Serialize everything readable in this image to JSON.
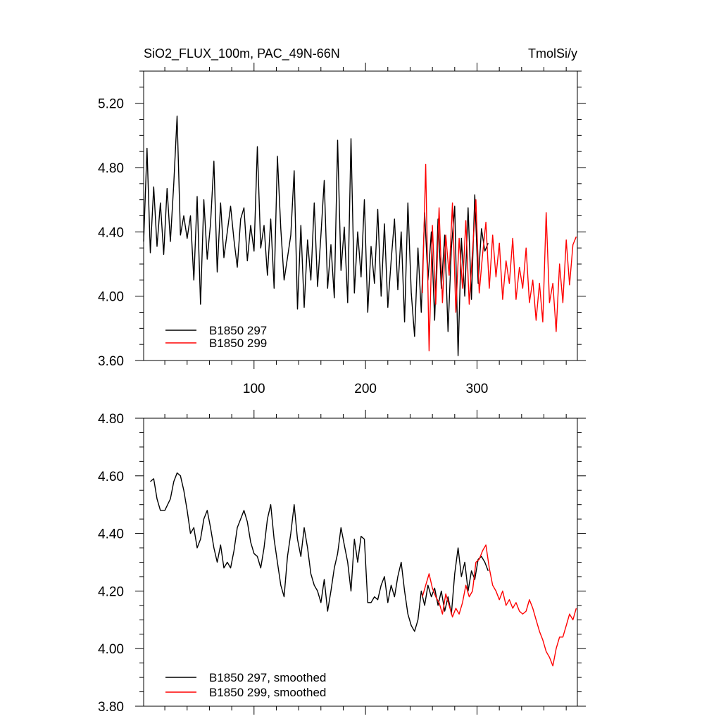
{
  "figure": {
    "title_left": "SiO2_FLUX_100m, PAC_49N-66N",
    "title_right": "TmolSi/y"
  },
  "chart_data": [
    {
      "type": "line",
      "title": "SiO2_FLUX_100m, PAC_49N-66N",
      "unit": "TmolSi/y",
      "xlim": [
        1,
        390
      ],
      "ylim": [
        3.6,
        5.4
      ],
      "x_ticks": [
        100,
        200,
        300
      ],
      "x_tick_labels": [
        "100",
        "200",
        "300"
      ],
      "y_ticks": [
        3.6,
        4.0,
        4.4,
        4.8,
        5.2
      ],
      "y_tick_labels": [
        "3.60",
        "4.00",
        "4.40",
        "4.80",
        "5.20"
      ],
      "legend_position": "bottom-left",
      "series": [
        {
          "name": "B1850 297",
          "color": "#000000",
          "x": [
            1,
            4,
            7,
            10,
            13,
            16,
            19,
            22,
            25,
            28,
            31,
            34,
            37,
            40,
            43,
            46,
            49,
            52,
            55,
            58,
            61,
            64,
            67,
            70,
            73,
            76,
            79,
            82,
            85,
            88,
            91,
            94,
            97,
            100,
            103,
            106,
            109,
            112,
            115,
            118,
            121,
            124,
            127,
            130,
            133,
            136,
            139,
            142,
            145,
            148,
            151,
            154,
            157,
            160,
            163,
            166,
            169,
            172,
            175,
            178,
            181,
            184,
            187,
            190,
            193,
            196,
            199,
            202,
            205,
            208,
            211,
            214,
            217,
            220,
            223,
            226,
            229,
            232,
            235,
            238,
            241,
            244,
            247,
            250,
            253,
            256,
            259,
            262,
            265,
            268,
            271,
            274,
            277,
            280,
            283,
            286,
            289,
            292,
            295,
            298,
            301,
            304,
            307,
            310
          ],
          "values": [
            4.34,
            4.92,
            4.27,
            4.68,
            4.31,
            4.58,
            4.26,
            4.67,
            4.34,
            4.7,
            5.12,
            4.38,
            4.5,
            4.36,
            4.5,
            4.1,
            4.62,
            3.95,
            4.6,
            4.23,
            4.45,
            4.84,
            4.15,
            4.58,
            4.24,
            4.4,
            4.56,
            4.35,
            4.18,
            4.48,
            4.55,
            4.22,
            4.44,
            4.28,
            4.93,
            4.3,
            4.44,
            4.13,
            4.48,
            4.05,
            4.87,
            4.42,
            4.1,
            4.24,
            4.38,
            4.78,
            3.92,
            4.44,
            3.93,
            4.35,
            4.1,
            4.58,
            4.06,
            4.38,
            4.72,
            4.05,
            4.32,
            3.99,
            4.97,
            4.16,
            4.43,
            3.96,
            4.98,
            4.02,
            4.4,
            4.12,
            4.6,
            3.9,
            4.31,
            4.08,
            4.54,
            4.0,
            4.45,
            3.93,
            4.22,
            4.48,
            4.04,
            4.4,
            3.84,
            4.58,
            4.02,
            3.75,
            4.3,
            3.9,
            4.52,
            4.1,
            4.4,
            3.85,
            4.48,
            4.05,
            4.38,
            3.78,
            4.3,
            4.56,
            3.63,
            4.36,
            4.0,
            4.55,
            3.98,
            4.63,
            4.08,
            4.42,
            4.28,
            4.33
          ]
        },
        {
          "name": "B1850 299",
          "color": "#ff0000",
          "x": [
            251,
            254,
            257,
            260,
            263,
            266,
            269,
            272,
            275,
            278,
            281,
            284,
            287,
            290,
            293,
            296,
            299,
            302,
            305,
            308,
            311,
            314,
            317,
            320,
            323,
            326,
            329,
            332,
            335,
            338,
            341,
            344,
            347,
            350,
            353,
            356,
            359,
            362,
            365,
            368,
            371,
            374,
            377,
            380,
            383,
            386,
            389
          ],
          "values": [
            4.02,
            4.82,
            3.66,
            4.44,
            3.95,
            4.55,
            3.96,
            4.38,
            4.13,
            4.58,
            3.9,
            4.36,
            4.05,
            4.47,
            3.95,
            4.28,
            4.6,
            4.02,
            4.26,
            4.46,
            4.05,
            4.38,
            4.12,
            4.33,
            3.98,
            4.22,
            4.08,
            4.36,
            3.98,
            4.18,
            4.05,
            4.3,
            3.96,
            4.1,
            3.85,
            4.08,
            3.84,
            4.52,
            3.96,
            4.08,
            3.78,
            4.2,
            3.96,
            4.35,
            4.07,
            4.32,
            4.37
          ]
        }
      ]
    },
    {
      "type": "line",
      "xlim": [
        1,
        390
      ],
      "ylim": [
        3.8,
        4.8
      ],
      "y_ticks": [
        3.8,
        4.0,
        4.2,
        4.4,
        4.6,
        4.8
      ],
      "y_tick_labels": [
        "3.80",
        "4.00",
        "4.20",
        "4.40",
        "4.60",
        "4.80"
      ],
      "x_ticks": [
        100,
        200,
        300
      ],
      "legend_position": "bottom-left",
      "series": [
        {
          "name": "B1850 297, smoothed",
          "color": "#000000",
          "x": [
            7,
            10,
            13,
            16,
            20,
            25,
            28,
            31,
            34,
            37,
            40,
            43,
            46,
            49,
            52,
            55,
            58,
            61,
            64,
            67,
            70,
            73,
            76,
            79,
            82,
            85,
            88,
            91,
            94,
            97,
            100,
            103,
            106,
            109,
            112,
            115,
            118,
            121,
            124,
            127,
            130,
            133,
            136,
            139,
            142,
            145,
            148,
            151,
            154,
            157,
            160,
            163,
            166,
            169,
            172,
            175,
            178,
            181,
            184,
            187,
            190,
            193,
            196,
            199,
            202,
            205,
            208,
            211,
            214,
            217,
            220,
            223,
            226,
            229,
            232,
            235,
            238,
            241,
            244,
            247,
            250,
            253,
            256,
            259,
            262,
            265,
            268,
            271,
            274,
            277,
            280,
            283,
            286,
            289,
            292,
            295,
            298,
            301,
            304,
            307,
            310
          ],
          "values": [
            4.58,
            4.59,
            4.52,
            4.48,
            4.48,
            4.52,
            4.58,
            4.61,
            4.6,
            4.55,
            4.48,
            4.4,
            4.42,
            4.35,
            4.38,
            4.45,
            4.48,
            4.42,
            4.35,
            4.3,
            4.36,
            4.28,
            4.3,
            4.28,
            4.34,
            4.42,
            4.45,
            4.48,
            4.44,
            4.37,
            4.33,
            4.32,
            4.28,
            4.35,
            4.45,
            4.5,
            4.38,
            4.3,
            4.22,
            4.18,
            4.32,
            4.4,
            4.5,
            4.38,
            4.32,
            4.42,
            4.35,
            4.26,
            4.22,
            4.2,
            4.16,
            4.24,
            4.13,
            4.2,
            4.28,
            4.33,
            4.42,
            4.36,
            4.3,
            4.2,
            4.38,
            4.3,
            4.39,
            4.38,
            4.16,
            4.16,
            4.18,
            4.17,
            4.22,
            4.25,
            4.16,
            4.22,
            4.18,
            4.25,
            4.3,
            4.2,
            4.12,
            4.08,
            4.06,
            4.1,
            4.2,
            4.15,
            4.22,
            4.18,
            4.21,
            4.15,
            4.2,
            4.13,
            4.18,
            4.12,
            4.26,
            4.35,
            4.25,
            4.3,
            4.2,
            4.27,
            4.24,
            4.31,
            4.32,
            4.3,
            4.27
          ]
        },
        {
          "name": "B1850 299, smoothed",
          "color": "#ff0000",
          "x": [
            251,
            254,
            257,
            260,
            263,
            266,
            269,
            272,
            275,
            278,
            281,
            284,
            287,
            290,
            293,
            296,
            299,
            302,
            305,
            308,
            311,
            314,
            317,
            320,
            323,
            326,
            329,
            332,
            335,
            338,
            341,
            344,
            347,
            350,
            353,
            356,
            359,
            362,
            365,
            368,
            371,
            374,
            377,
            380,
            383,
            386,
            389
          ],
          "values": [
            4.18,
            4.22,
            4.26,
            4.21,
            4.18,
            4.16,
            4.12,
            4.19,
            4.15,
            4.11,
            4.14,
            4.12,
            4.16,
            4.22,
            4.18,
            4.2,
            4.3,
            4.31,
            4.34,
            4.36,
            4.28,
            4.22,
            4.2,
            4.17,
            4.2,
            4.15,
            4.17,
            4.14,
            4.16,
            4.13,
            4.12,
            4.13,
            4.17,
            4.14,
            4.1,
            4.06,
            4.03,
            3.99,
            3.97,
            3.94,
            4.0,
            4.04,
            4.04,
            4.08,
            4.12,
            4.1,
            4.14
          ]
        }
      ]
    }
  ]
}
